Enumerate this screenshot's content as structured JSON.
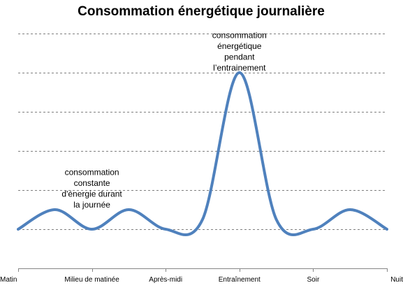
{
  "chart_data": {
    "type": "line",
    "title": "Consommation énergétique journalière",
    "xlabel": "",
    "ylabel": "",
    "categories": [
      "Matin",
      "Milieu de matinée",
      "Après-midi",
      "Entraînement",
      "Soir",
      "Nuit"
    ],
    "x": [
      0,
      0.5,
      1,
      1.5,
      2,
      2.5,
      3,
      3.5,
      4,
      4.5,
      5
    ],
    "series": [
      {
        "values": [
          1,
          1.5,
          1,
          1.5,
          1,
          1.25,
          5,
          1.25,
          1,
          1.5,
          1
        ],
        "color": "#4f81bd"
      }
    ],
    "ylim": [
      0,
      6
    ],
    "grid": true,
    "grid_style": "dashed",
    "legend": "none",
    "annotations": [
      {
        "lines": [
          "consommation",
          "constante",
          "d'énergie durant",
          "la journée"
        ],
        "x": 1,
        "y": 1.55
      },
      {
        "lines": [
          "consommation",
          "énergétique",
          "pendant",
          "l’entrainement"
        ],
        "x": 3,
        "y": 5.05
      }
    ]
  }
}
